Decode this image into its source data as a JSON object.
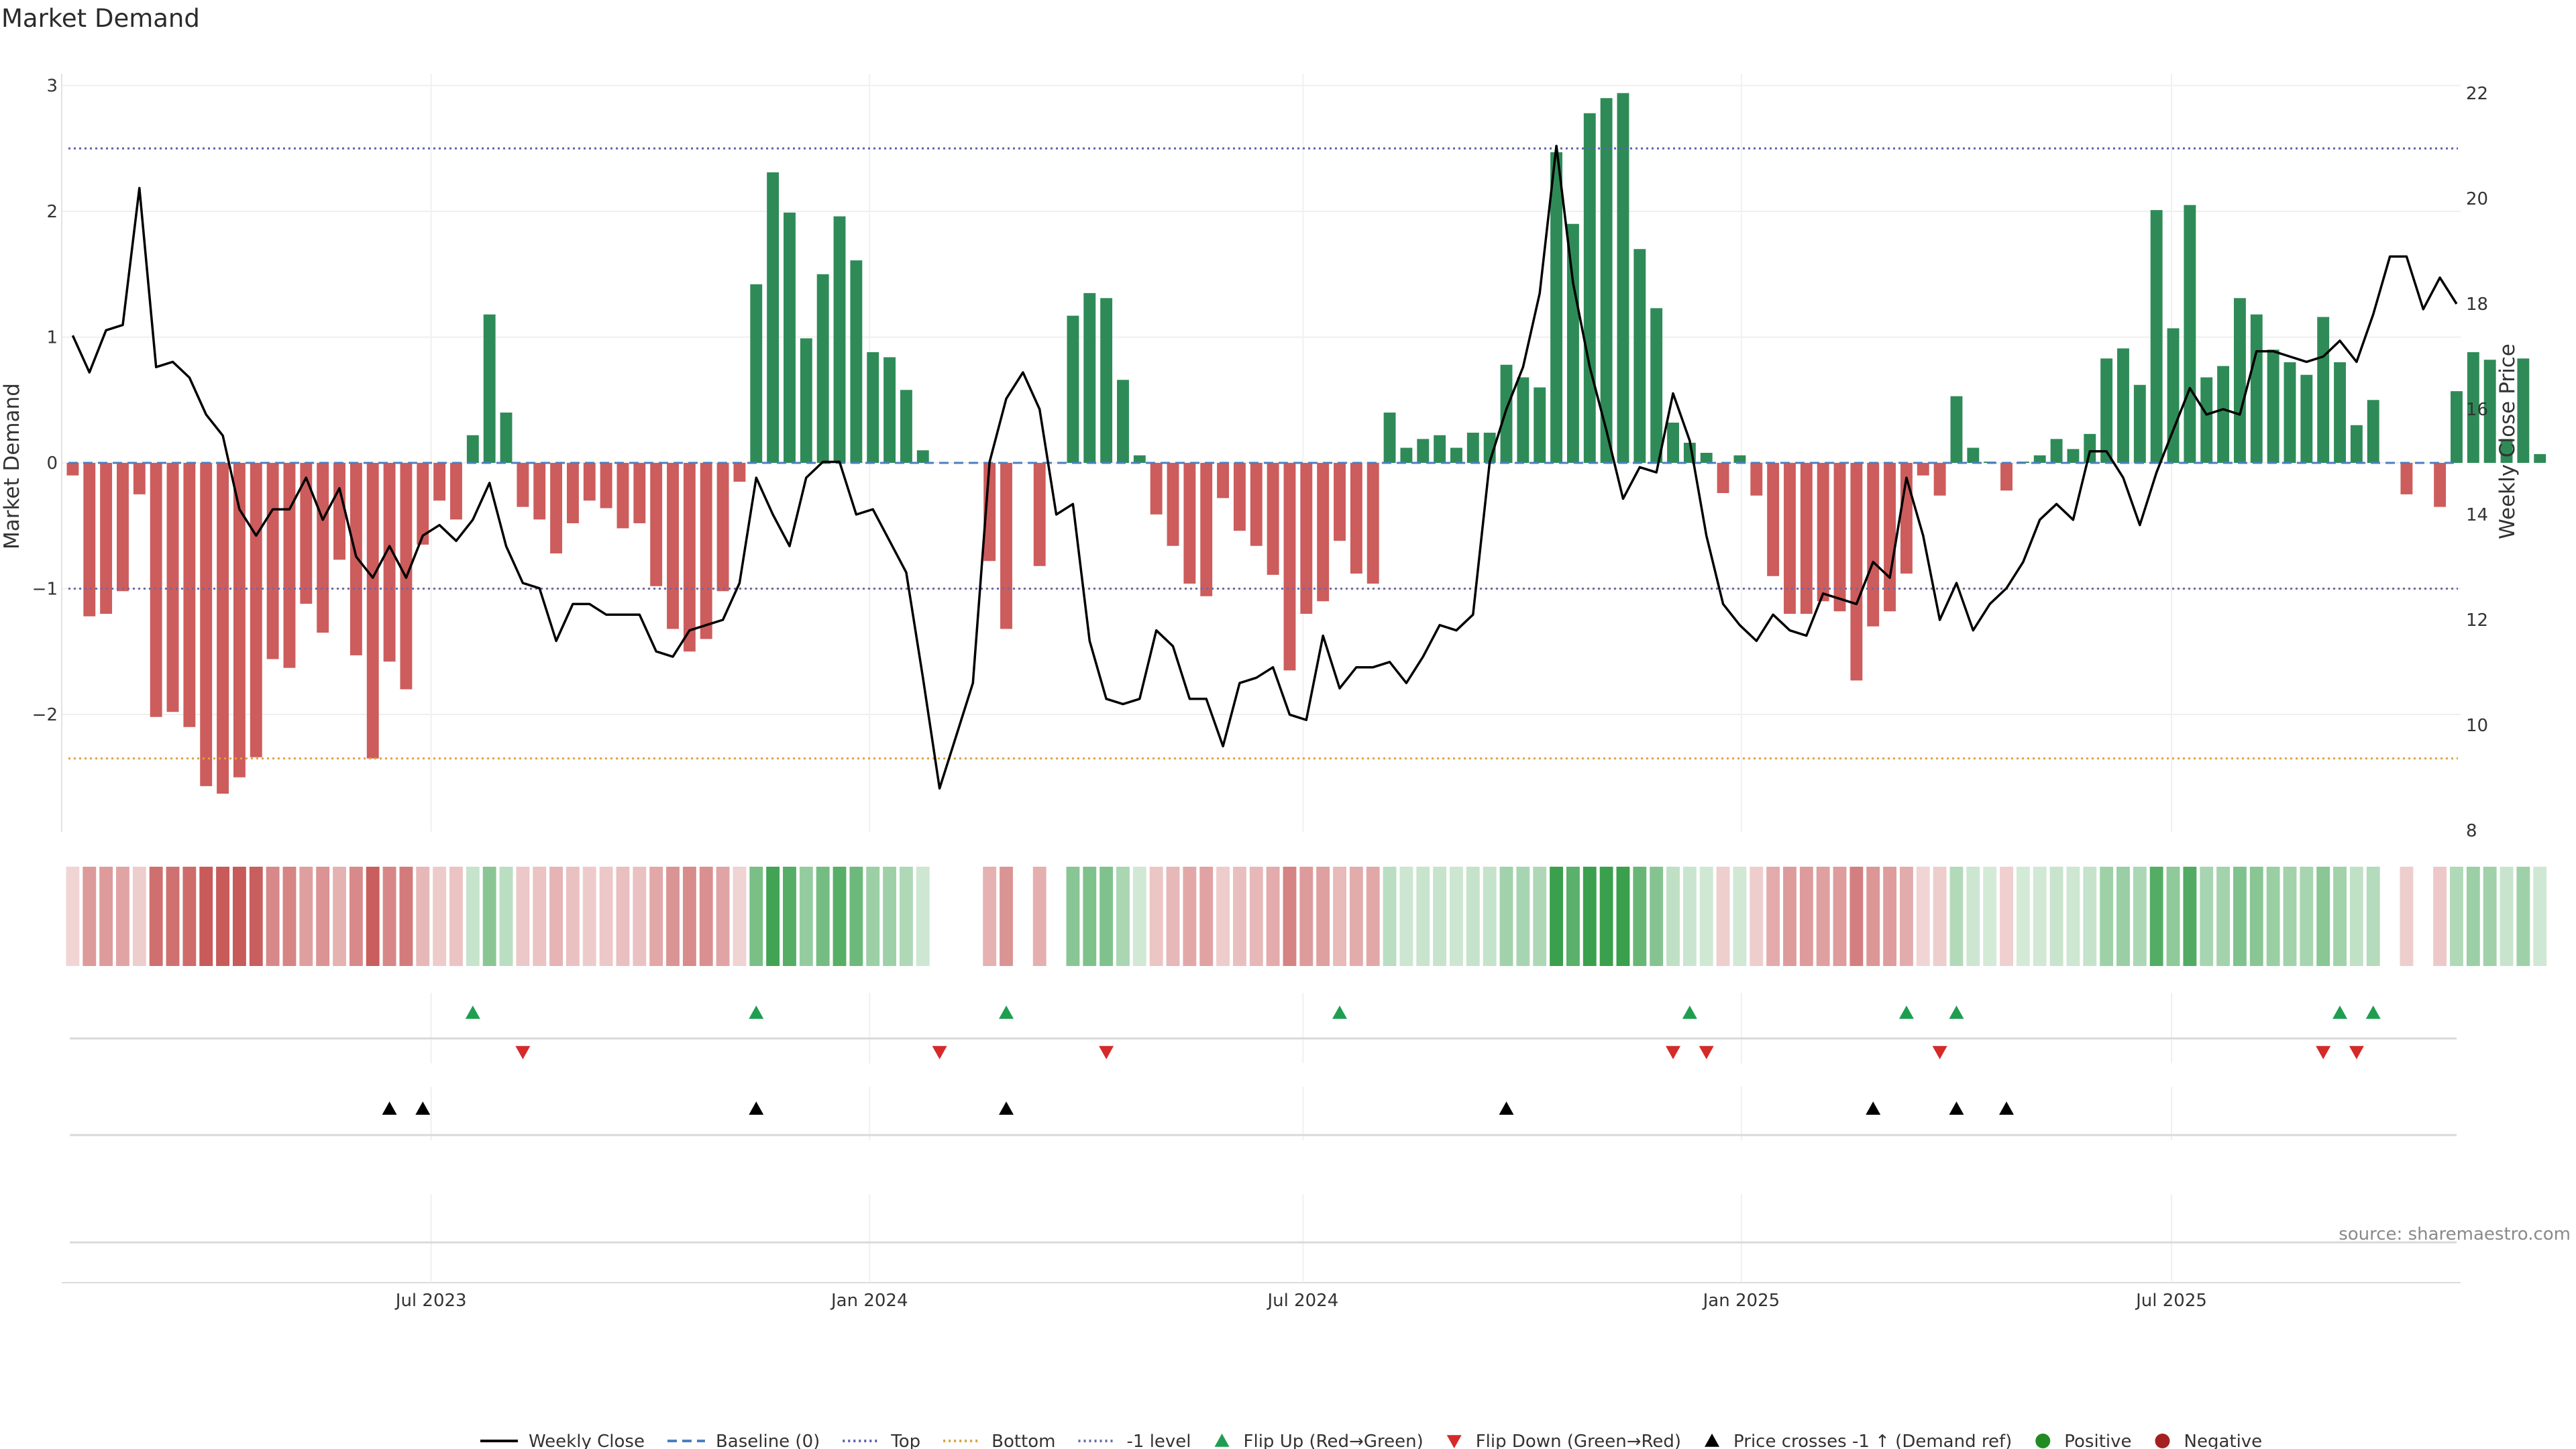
{
  "title": "Market Demand",
  "source": "source: sharemaestro.com",
  "colors": {
    "positive": "#2e8b57",
    "negative": "#cd5c5c",
    "price": "#000000",
    "baseline": "#4a7fc1",
    "top": "#5b5fb3",
    "bottom": "#e0a040",
    "minus1": "#6b6ba8",
    "flip_up": "#1e9e50",
    "flip_down": "#d42a2a",
    "cross": "#000000",
    "pos_dot": "#228b22",
    "neg_dot": "#a52020"
  },
  "chart_data": {
    "type": "bar",
    "title": "Market Demand",
    "ylabel": "Market Demand",
    "y2label": "Weekly Close Price",
    "ylim": [
      -2.9,
      3.2
    ],
    "y2lim": [
      7.9,
      22.6
    ],
    "yticks": [
      3,
      2,
      1,
      0,
      -1,
      -2
    ],
    "ytick_labels": [
      "3",
      "2",
      "1",
      "0",
      "−1",
      "−2"
    ],
    "y2ticks": [
      22,
      20,
      18,
      16,
      14,
      12,
      10,
      8
    ],
    "y2tick_labels": [
      "22",
      "20",
      "18",
      "16",
      "14",
      "12",
      "10",
      "8"
    ],
    "x_start": "2023-01-13",
    "x_step_days": 7,
    "xticks": [
      {
        "label": "Jul 2023",
        "week": 22
      },
      {
        "label": "Jan 2024",
        "week": 48.3
      },
      {
        "label": "Jul 2024",
        "week": 74.3
      },
      {
        "label": "Jan 2025",
        "week": 100.6
      },
      {
        "label": "Jul 2025",
        "week": 126.4
      }
    ],
    "reference_lines": {
      "top": 2.5,
      "bottom": -2.35,
      "minus1_level": -1,
      "baseline": 0
    },
    "demand": [
      -0.1,
      -1.22,
      -1.2,
      -1.02,
      -0.25,
      -2.02,
      -1.98,
      -2.1,
      -2.57,
      -2.63,
      -2.5,
      -2.34,
      -1.56,
      -1.63,
      -1.12,
      -1.35,
      -0.77,
      -1.53,
      -2.35,
      -1.58,
      -1.8,
      -0.65,
      -0.3,
      -0.45,
      0.22,
      1.18,
      0.4,
      -0.35,
      -0.45,
      -0.72,
      -0.48,
      -0.3,
      -0.36,
      -0.52,
      -0.48,
      -0.98,
      -1.32,
      -1.5,
      -1.4,
      -1.02,
      -0.15,
      1.42,
      2.31,
      1.99,
      0.99,
      1.5,
      1.96,
      1.61,
      0.88,
      0.84,
      0.58,
      0.1,
      0,
      0,
      0,
      -0.78,
      -1.32,
      0,
      -0.82,
      0,
      1.17,
      1.35,
      1.31,
      0.66,
      0.06,
      -0.41,
      -0.66,
      -0.96,
      -1.06,
      -0.28,
      -0.54,
      -0.66,
      -0.89,
      -1.65,
      -1.2,
      -1.1,
      -0.62,
      -0.88,
      -0.96,
      0.4,
      0.12,
      0.19,
      0.22,
      0.12,
      0.24,
      0.24,
      0.78,
      0.68,
      0.6,
      2.47,
      1.9,
      2.78,
      2.9,
      2.94,
      1.7,
      1.23,
      0.32,
      0.16,
      0.08,
      -0.24,
      0.06,
      -0.26,
      -0.9,
      -1.2,
      -1.2,
      -1.1,
      -1.18,
      -1.73,
      -1.3,
      -1.18,
      -0.88,
      -0.1,
      -0.26,
      0.53,
      0.12,
      0.01,
      -0.22,
      0.01,
      0.06,
      0.19,
      0.11,
      0.23,
      0.83,
      0.91,
      0.62,
      2.01,
      1.07,
      2.05,
      0.68,
      0.77,
      1.31,
      1.18,
      0.9,
      0.8,
      0.7,
      1.16,
      0.8,
      0.3,
      0.5,
      0,
      -0.25,
      0,
      -0.35,
      0.57,
      0.88,
      0.82,
      0.19,
      0.83,
      0.07
    ],
    "price": [
      17.4,
      16.7,
      17.5,
      17.6,
      20.2,
      16.8,
      16.9,
      16.6,
      15.9,
      15.5,
      14.1,
      13.6,
      14.1,
      14.1,
      14.7,
      13.9,
      14.5,
      13.2,
      12.8,
      13.4,
      12.8,
      13.6,
      13.8,
      13.5,
      13.9,
      14.6,
      13.4,
      12.7,
      12.6,
      11.6,
      12.3,
      12.3,
      12.1,
      12.1,
      12.1,
      11.4,
      11.3,
      11.8,
      11.9,
      12.0,
      12.7,
      14.7,
      14.0,
      13.4,
      14.7,
      15.0,
      15.0,
      14.0,
      14.1,
      13.5,
      12.9,
      10.9,
      8.8,
      9.8,
      10.8,
      15.0,
      16.2,
      16.7,
      16.0,
      14.0,
      14.2,
      11.6,
      10.5,
      10.4,
      10.5,
      11.8,
      11.5,
      10.5,
      10.5,
      9.6,
      10.8,
      10.9,
      11.1,
      10.2,
      10.1,
      11.7,
      10.7,
      11.1,
      11.1,
      11.2,
      10.8,
      11.3,
      11.9,
      11.8,
      12.1,
      15.0,
      16.0,
      16.8,
      18.2,
      21.0,
      18.4,
      16.8,
      15.6,
      14.3,
      14.9,
      14.8,
      16.3,
      15.4,
      13.6,
      12.3,
      11.9,
      11.6,
      12.1,
      11.8,
      11.7,
      12.5,
      12.4,
      12.3,
      13.1,
      12.8,
      14.7,
      13.6,
      12.0,
      12.7,
      11.8,
      12.3,
      12.6,
      13.1,
      13.9,
      14.2,
      13.9,
      15.2,
      15.2,
      14.7,
      13.8,
      14.8,
      15.6,
      16.4,
      15.9,
      16.0,
      15.9,
      17.1,
      17.1,
      17.0,
      16.9,
      17.0,
      17.3,
      16.9,
      17.8,
      18.9,
      18.9,
      17.9,
      18.5,
      18.0
    ],
    "flip_up_weeks": [
      24,
      41,
      56,
      76,
      97,
      110,
      113,
      136,
      138
    ],
    "flip_down_weeks": [
      27,
      52,
      62,
      96,
      98,
      112,
      135,
      137
    ],
    "price_cross_weeks": [
      19,
      21,
      41,
      56,
      86,
      108,
      113,
      116
    ]
  },
  "legend": [
    {
      "label": "Weekly Close",
      "marker": "solid-line",
      "color": "#000000"
    },
    {
      "label": "Baseline (0)",
      "marker": "dashed-line",
      "color": "#4a7fc1"
    },
    {
      "label": "Top",
      "marker": "dotted-line",
      "color": "#5b5fb3"
    },
    {
      "label": "Bottom",
      "marker": "dotted-line",
      "color": "#e0a040"
    },
    {
      "label": "-1 level",
      "marker": "dotted-line",
      "color": "#6b6ba8"
    },
    {
      "label": "Flip Up (Red→Green)",
      "marker": "triangle-up",
      "color": "#1e9e50"
    },
    {
      "label": "Flip Down (Green→Red)",
      "marker": "triangle-down",
      "color": "#d42a2a"
    },
    {
      "label": "Price crosses -1 ↑ (Demand ref)",
      "marker": "triangle-up",
      "color": "#000000"
    },
    {
      "label": "Positive",
      "marker": "dot",
      "color": "#228b22"
    },
    {
      "label": "Negative",
      "marker": "dot",
      "color": "#a52020"
    }
  ]
}
